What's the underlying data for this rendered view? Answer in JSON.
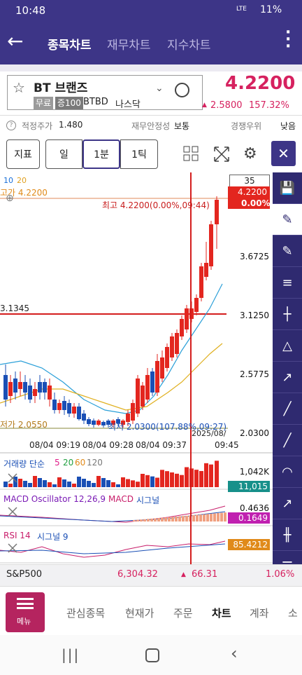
{
  "status_bar": {
    "time": "10:48",
    "network": "LTE",
    "battery": "11%"
  },
  "header": {
    "tabs": [
      "종목차트",
      "재무차트",
      "지수차트"
    ]
  },
  "stock": {
    "name": "BT 브랜즈",
    "badges": [
      "무료",
      "증100"
    ],
    "ticker": "BTBD",
    "market": "나스닥",
    "price": "4.2200",
    "change": "2.5800",
    "change_rate": "157.32%"
  },
  "info": [
    {
      "label": "적정주가",
      "value": "1.480"
    },
    {
      "label": "재무안정성",
      "value": "보통"
    },
    {
      "label": "경쟁우위",
      "value": "낮음"
    }
  ],
  "toolbar": {
    "indicator": "지표",
    "periods": [
      "일",
      "1분",
      "1틱"
    ]
  },
  "chart": {
    "ma_legend": [
      "10",
      "20"
    ],
    "high_label": "고가 4.2200",
    "count": "35",
    "current_price": "4.2200",
    "current_rate": "0.00%",
    "max_note": "최고 4.2200(0.00%,09:44)",
    "price_labels": [
      "3.6725",
      "3.1250",
      "2.5775",
      "2.0300"
    ],
    "crosshair_price": "3.1345",
    "low_label": "저가 2.0550",
    "min_note": "최저 2.0300(107.88%,09:27)",
    "crosshair_date": "2025/08/",
    "time_labels": [
      "08/04 09:19",
      "08/04 09:28",
      "08/04 09:37",
      "09:45"
    ]
  },
  "volume": {
    "title": "거래량 단순",
    "ma": [
      "5",
      "20",
      "60",
      "120"
    ],
    "axis_label": "1,042K",
    "current": "11,015"
  },
  "macd": {
    "title": "MACD Oscillator 12,26,9",
    "line": "MACD",
    "signal": "시그널",
    "axis_label": "0.4636",
    "current": "0.1649"
  },
  "rsi": {
    "title": "RSI 14",
    "signal": "시그널 9",
    "current": "85.4212"
  },
  "ticker_bar": {
    "index": "S&P500",
    "value": "6,304.32",
    "change": "66.31",
    "rate": "1.06%"
  },
  "nav": {
    "menu": "메뉴",
    "tabs": [
      "관심종목",
      "현재가",
      "주문",
      "차트",
      "계좌",
      "소"
    ]
  }
}
